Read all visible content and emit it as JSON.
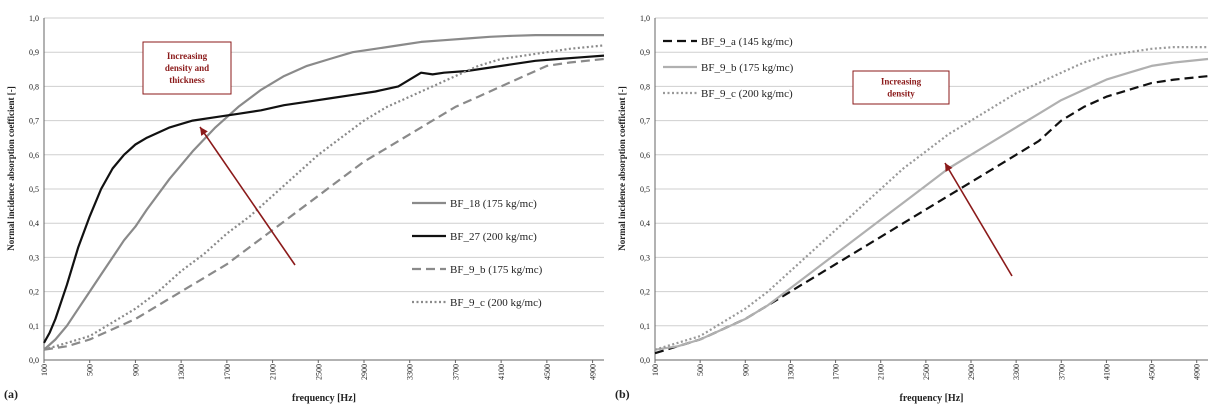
{
  "chart_data": [
    {
      "panel_label": "(a)",
      "type": "line",
      "xlabel": "frequency [Hz]",
      "ylabel": "Normal incidence absorption coefficient [-]",
      "xlim": [
        100,
        5000
      ],
      "ylim": [
        0,
        1
      ],
      "grid": true,
      "legend_position": "center-right",
      "x_ticks": [
        100,
        500,
        900,
        1300,
        1700,
        2100,
        2500,
        2900,
        3300,
        3700,
        4100,
        4500,
        4900
      ],
      "y_ticks": [
        "0,0",
        "0,1",
        "0,2",
        "0,3",
        "0,4",
        "0,5",
        "0,6",
        "0,7",
        "0,8",
        "0,9",
        "1,0"
      ],
      "annotation": {
        "text": [
          "Increasing",
          "density and",
          "thickness"
        ],
        "color": "#8b1a1a"
      },
      "series": [
        {
          "name": "BF_18 (175 kg/mc)",
          "color": "#8a8a8a",
          "dash": "solid",
          "x": [
            100,
            200,
            300,
            400,
            500,
            600,
            700,
            800,
            900,
            1000,
            1200,
            1400,
            1600,
            1800,
            2000,
            2200,
            2400,
            2600,
            2800,
            3000,
            3200,
            3400,
            3600,
            3800,
            4000,
            4200,
            4400,
            4600,
            4800,
            5000
          ],
          "y": [
            0.03,
            0.06,
            0.1,
            0.15,
            0.2,
            0.25,
            0.3,
            0.35,
            0.39,
            0.44,
            0.53,
            0.61,
            0.68,
            0.74,
            0.79,
            0.83,
            0.86,
            0.88,
            0.9,
            0.91,
            0.92,
            0.93,
            0.935,
            0.94,
            0.945,
            0.948,
            0.95,
            0.95,
            0.95,
            0.95
          ]
        },
        {
          "name": "BF_27 (200 kg/mc)",
          "color": "#111111",
          "dash": "solid",
          "x": [
            100,
            150,
            200,
            300,
            400,
            500,
            600,
            700,
            800,
            900,
            1000,
            1200,
            1400,
            1600,
            1800,
            2000,
            2200,
            2400,
            2600,
            2800,
            3000,
            3200,
            3300,
            3400,
            3500,
            3600,
            3800,
            4000,
            4200,
            4400,
            4600,
            4800,
            5000
          ],
          "y": [
            0.05,
            0.08,
            0.12,
            0.22,
            0.33,
            0.42,
            0.5,
            0.56,
            0.6,
            0.63,
            0.65,
            0.68,
            0.7,
            0.71,
            0.72,
            0.73,
            0.745,
            0.755,
            0.765,
            0.775,
            0.785,
            0.8,
            0.82,
            0.84,
            0.835,
            0.84,
            0.845,
            0.855,
            0.865,
            0.875,
            0.88,
            0.885,
            0.89
          ]
        },
        {
          "name": "BF_9_b (175 kg/mc)",
          "color": "#8a8a8a",
          "dash": "long-dash",
          "x": [
            100,
            300,
            500,
            700,
            900,
            1100,
            1300,
            1500,
            1700,
            1900,
            2100,
            2300,
            2500,
            2700,
            2900,
            3100,
            3300,
            3500,
            3700,
            3900,
            4100,
            4300,
            4500,
            4700,
            5000
          ],
          "y": [
            0.03,
            0.04,
            0.06,
            0.09,
            0.12,
            0.16,
            0.2,
            0.24,
            0.28,
            0.33,
            0.38,
            0.43,
            0.48,
            0.53,
            0.58,
            0.62,
            0.66,
            0.7,
            0.74,
            0.77,
            0.8,
            0.83,
            0.86,
            0.87,
            0.88
          ]
        },
        {
          "name": "BF_9_c (200 kg/mc)",
          "color": "#8a8a8a",
          "dash": "dotted",
          "x": [
            100,
            300,
            500,
            700,
            900,
            1100,
            1300,
            1500,
            1700,
            1900,
            2100,
            2300,
            2500,
            2700,
            2900,
            3100,
            3300,
            3500,
            3700,
            3900,
            4100,
            4300,
            4500,
            4700,
            5000
          ],
          "y": [
            0.03,
            0.05,
            0.07,
            0.11,
            0.15,
            0.2,
            0.26,
            0.31,
            0.37,
            0.42,
            0.48,
            0.54,
            0.6,
            0.65,
            0.7,
            0.74,
            0.77,
            0.8,
            0.83,
            0.86,
            0.88,
            0.89,
            0.9,
            0.91,
            0.92
          ]
        }
      ]
    },
    {
      "panel_label": "(b)",
      "type": "line",
      "xlabel": "frequency [Hz]",
      "ylabel": "Normal incidence absorption coefficient [-]",
      "xlim": [
        100,
        5000
      ],
      "ylim": [
        0,
        1
      ],
      "grid": true,
      "legend_position": "top-left",
      "x_ticks": [
        100,
        500,
        900,
        1300,
        1700,
        2100,
        2500,
        2900,
        3300,
        3700,
        4100,
        4500,
        4900
      ],
      "y_ticks": [
        "0,0",
        "0,1",
        "0,2",
        "0,3",
        "0,4",
        "0,5",
        "0,6",
        "0,7",
        "0,8",
        "0,9",
        "1,0"
      ],
      "annotation": {
        "text": [
          "Increasing",
          "density"
        ],
        "color": "#8b1a1a"
      },
      "series": [
        {
          "name": "BF_9_a (145 kg/mc)",
          "color": "#111111",
          "dash": "long-dash",
          "x": [
            100,
            300,
            500,
            700,
            900,
            1100,
            1300,
            1500,
            1700,
            1900,
            2100,
            2300,
            2500,
            2700,
            2900,
            3100,
            3300,
            3500,
            3700,
            3900,
            4100,
            4300,
            4500,
            4700,
            5000
          ],
          "y": [
            0.02,
            0.04,
            0.06,
            0.09,
            0.12,
            0.16,
            0.2,
            0.24,
            0.28,
            0.32,
            0.36,
            0.4,
            0.44,
            0.48,
            0.52,
            0.56,
            0.6,
            0.64,
            0.7,
            0.74,
            0.77,
            0.79,
            0.81,
            0.82,
            0.83
          ]
        },
        {
          "name": "BF_9_b (175 kg/mc)",
          "color": "#b0b0b0",
          "dash": "solid",
          "x": [
            100,
            300,
            500,
            700,
            900,
            1100,
            1300,
            1500,
            1700,
            1900,
            2100,
            2300,
            2500,
            2700,
            2900,
            3100,
            3300,
            3500,
            3700,
            3900,
            4100,
            4300,
            4500,
            4700,
            5000
          ],
          "y": [
            0.03,
            0.04,
            0.06,
            0.09,
            0.12,
            0.16,
            0.21,
            0.26,
            0.31,
            0.36,
            0.41,
            0.46,
            0.51,
            0.56,
            0.6,
            0.64,
            0.68,
            0.72,
            0.76,
            0.79,
            0.82,
            0.84,
            0.86,
            0.87,
            0.88
          ]
        },
        {
          "name": "BF_9_c (200 kg/mc)",
          "color": "#999999",
          "dash": "dotted",
          "x": [
            100,
            300,
            500,
            700,
            900,
            1100,
            1300,
            1500,
            1700,
            1900,
            2100,
            2300,
            2500,
            2700,
            2900,
            3100,
            3300,
            3500,
            3700,
            3900,
            4100,
            4300,
            4500,
            4700,
            5000
          ],
          "y": [
            0.03,
            0.05,
            0.07,
            0.11,
            0.15,
            0.2,
            0.26,
            0.32,
            0.38,
            0.44,
            0.5,
            0.56,
            0.61,
            0.66,
            0.7,
            0.74,
            0.78,
            0.81,
            0.84,
            0.87,
            0.89,
            0.9,
            0.91,
            0.915,
            0.915
          ]
        }
      ]
    }
  ]
}
